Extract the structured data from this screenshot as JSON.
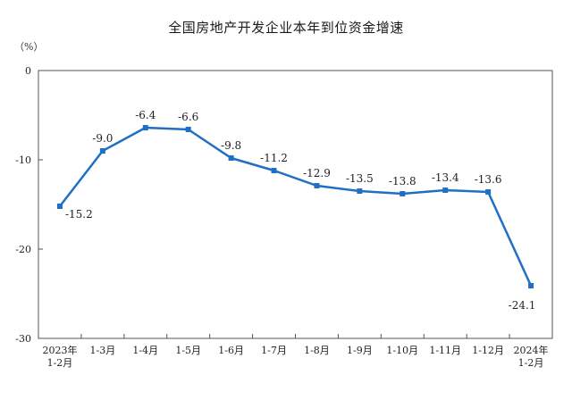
{
  "chart_data": {
    "type": "line",
    "title": "全国房地产开发企业本年到位资金增速",
    "unit": "（%）",
    "categories": [
      "2023年\n1-2月",
      "1-3月",
      "1-4月",
      "1-5月",
      "1-6月",
      "1-7月",
      "1-8月",
      "1-9月",
      "1-10月",
      "1-11月",
      "1-12月",
      "2024年\n1-2月"
    ],
    "series": [
      {
        "values": [
          -15.2,
          -9.0,
          -6.4,
          -6.6,
          -9.8,
          -11.2,
          -12.9,
          -13.5,
          -13.8,
          -13.4,
          -13.6,
          -24.1
        ],
        "labels": [
          "-15.2",
          "-9.0",
          "-6.4",
          "-6.6",
          "-9.8",
          "-11.2",
          "-12.9",
          "-13.5",
          "-13.8",
          "-13.4",
          "-13.6",
          "-24.1"
        ],
        "color": "#1f6fc5"
      }
    ],
    "yticks": [
      0,
      -10,
      -20,
      -30
    ],
    "ylim": [
      -30,
      0
    ],
    "grid": false,
    "legend": "none"
  }
}
